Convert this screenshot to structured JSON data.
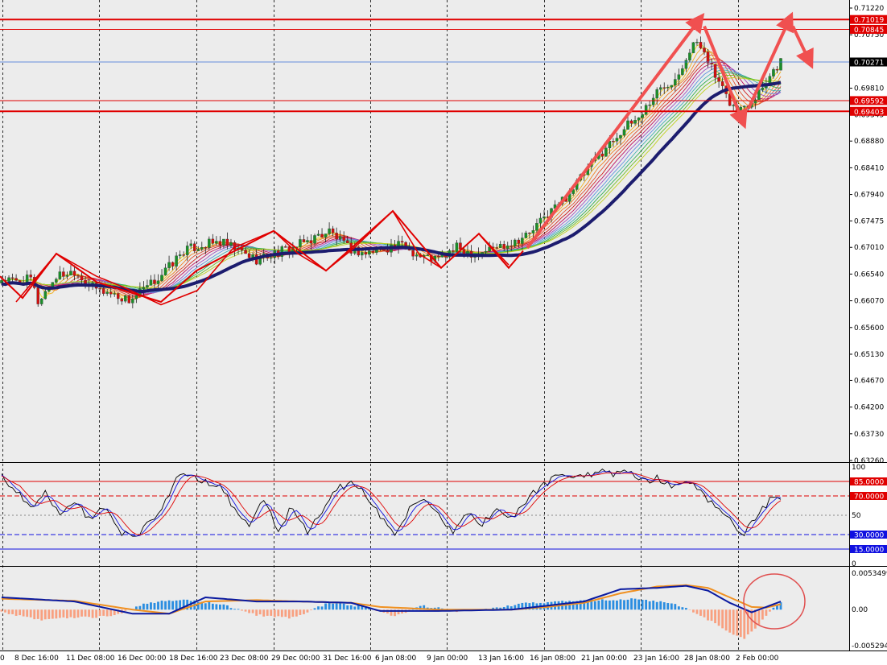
{
  "colors": {
    "background": "#ececec",
    "axis_bg": "#ffffff",
    "bull": "#1a8f2a",
    "bear": "#d01010",
    "wick": "#222222",
    "level_red": "#e00000",
    "current": "#3a6fd8",
    "ma_slow": "#1c1c6e",
    "arrow": "#f05050",
    "rsi_black": "#000000",
    "rsi_blue": "#1010e0",
    "rsi_red": "#e00000",
    "macd_pos": "#2a8de0",
    "macd_neg": "#f8a080",
    "macd_line": "#0a1aa0",
    "signal_line": "#f09020",
    "circle": "#e05050"
  },
  "chart_data": [
    {
      "type": "candlestick",
      "panel": "price",
      "ylim": [
        0.6326,
        0.7122
      ],
      "y_ticks": [
        "0.71220",
        "0.70750",
        "0.70285",
        "0.69810",
        "0.69345",
        "0.68880",
        "0.68410",
        "0.67940",
        "0.67475",
        "0.67010",
        "0.66540",
        "0.66070",
        "0.65600",
        "0.65130",
        "0.64670",
        "0.64200",
        "0.63730",
        "0.63260"
      ],
      "x_labels": [
        "0",
        "8 Dec 16:00",
        "11 Dec 08:00",
        "16 Dec 00:00",
        "18 Dec 16:00",
        "23 Dec 08:00",
        "29 Dec 00:00",
        "31 Dec 16:00",
        "6 Jan 08:00",
        "9 Jan 00:00",
        "13 Jan 16:00",
        "16 Jan 08:00",
        "21 Jan 00:00",
        "23 Jan 16:00",
        "28 Jan 08:00",
        "2 Feb 00:00"
      ],
      "close_path": [
        [
          0,
          0.6645
        ],
        [
          4,
          0.664
        ],
        [
          8,
          0.6645
        ],
        [
          10,
          0.6605
        ],
        [
          15,
          0.665
        ],
        [
          20,
          0.666
        ],
        [
          25,
          0.663
        ],
        [
          30,
          0.662
        ],
        [
          35,
          0.6608
        ],
        [
          40,
          0.663
        ],
        [
          45,
          0.666
        ],
        [
          50,
          0.6695
        ],
        [
          55,
          0.6705
        ],
        [
          60,
          0.671
        ],
        [
          65,
          0.6695
        ],
        [
          70,
          0.668
        ],
        [
          75,
          0.669
        ],
        [
          80,
          0.67
        ],
        [
          85,
          0.6715
        ],
        [
          90,
          0.673
        ],
        [
          95,
          0.67
        ],
        [
          100,
          0.669
        ],
        [
          105,
          0.67
        ],
        [
          110,
          0.6705
        ],
        [
          115,
          0.6685
        ],
        [
          120,
          0.668
        ],
        [
          125,
          0.67
        ],
        [
          130,
          0.669
        ],
        [
          135,
          0.67
        ],
        [
          140,
          0.671
        ],
        [
          145,
          0.6725
        ],
        [
          150,
          0.676
        ],
        [
          155,
          0.679
        ],
        [
          160,
          0.683
        ],
        [
          165,
          0.687
        ],
        [
          170,
          0.6905
        ],
        [
          175,
          0.693
        ],
        [
          180,
          0.6975
        ],
        [
          185,
          0.7
        ],
        [
          190,
          0.706
        ],
        [
          193,
          0.705
        ],
        [
          196,
          0.7
        ],
        [
          199,
          0.6965
        ],
        [
          202,
          0.694
        ],
        [
          206,
          0.696
        ],
        [
          210,
          0.6995
        ],
        [
          214,
          0.703
        ]
      ],
      "levels": [
        {
          "value": 0.71019,
          "label": "0.71019",
          "style": "thick"
        },
        {
          "value": 0.70845,
          "label": "0.70845",
          "style": "thin"
        },
        {
          "value": 0.69592,
          "label": "0.69592",
          "style": "thin"
        },
        {
          "value": 0.69403,
          "label": "0.69403",
          "style": "thick"
        }
      ],
      "current_price": {
        "value": 0.70271,
        "label": "0.70271"
      }
    },
    {
      "type": "line",
      "panel": "rsi",
      "ylim": [
        0,
        100
      ],
      "y_ticks": [
        "100",
        "50",
        "0"
      ],
      "levels": [
        {
          "value": 85,
          "label": "85.0000",
          "color": "red",
          "style": "solid"
        },
        {
          "value": 70,
          "label": "70.0000",
          "color": "red",
          "style": "dash"
        },
        {
          "value": 50,
          "label": "",
          "color": "gray",
          "style": "dot"
        },
        {
          "value": 30,
          "label": "30.0000",
          "color": "blue",
          "style": "dash"
        },
        {
          "value": 15,
          "label": "15.0000",
          "color": "blue",
          "style": "solid"
        }
      ],
      "path": [
        [
          0,
          90
        ],
        [
          4,
          75
        ],
        [
          8,
          55
        ],
        [
          12,
          72
        ],
        [
          16,
          50
        ],
        [
          20,
          65
        ],
        [
          24,
          45
        ],
        [
          28,
          60
        ],
        [
          32,
          35
        ],
        [
          36,
          25
        ],
        [
          40,
          42
        ],
        [
          44,
          55
        ],
        [
          48,
          90
        ],
        [
          52,
          92
        ],
        [
          56,
          85
        ],
        [
          60,
          80
        ],
        [
          64,
          55
        ],
        [
          68,
          40
        ],
        [
          72,
          65
        ],
        [
          76,
          35
        ],
        [
          80,
          60
        ],
        [
          84,
          30
        ],
        [
          88,
          55
        ],
        [
          92,
          78
        ],
        [
          96,
          82
        ],
        [
          100,
          72
        ],
        [
          104,
          50
        ],
        [
          108,
          30
        ],
        [
          112,
          55
        ],
        [
          116,
          65
        ],
        [
          120,
          50
        ],
        [
          124,
          30
        ],
        [
          128,
          55
        ],
        [
          132,
          40
        ],
        [
          136,
          60
        ],
        [
          140,
          45
        ],
        [
          144,
          65
        ],
        [
          148,
          80
        ],
        [
          152,
          88
        ],
        [
          156,
          92
        ],
        [
          160,
          90
        ],
        [
          164,
          95
        ],
        [
          168,
          92
        ],
        [
          172,
          94
        ],
        [
          176,
          86
        ],
        [
          180,
          88
        ],
        [
          184,
          82
        ],
        [
          188,
          86
        ],
        [
          192,
          75
        ],
        [
          196,
          60
        ],
        [
          200,
          45
        ],
        [
          204,
          30
        ],
        [
          208,
          55
        ],
        [
          212,
          68
        ],
        [
          214,
          70
        ]
      ]
    },
    {
      "type": "bar",
      "panel": "macd",
      "ylim": [
        -0.005294,
        0.005349
      ],
      "y_ticks": [
        "0.0053499",
        "0.00",
        "-0.005294"
      ],
      "hist": [
        [
          0,
          -0.0004
        ],
        [
          10,
          -0.0015
        ],
        [
          20,
          -0.0012
        ],
        [
          30,
          -0.001
        ],
        [
          40,
          0.001
        ],
        [
          50,
          0.0015
        ],
        [
          60,
          0.0008
        ],
        [
          70,
          -0.0008
        ],
        [
          80,
          -0.0012
        ],
        [
          90,
          0.001
        ],
        [
          100,
          0.0004
        ],
        [
          108,
          -0.001
        ],
        [
          115,
          0.0006
        ],
        [
          125,
          -0.0002
        ],
        [
          135,
          0.0002
        ],
        [
          145,
          0.001
        ],
        [
          155,
          0.0012
        ],
        [
          165,
          0.0014
        ],
        [
          175,
          0.0016
        ],
        [
          180,
          0.0012
        ],
        [
          185,
          0.0008
        ],
        [
          188,
          0.0002
        ],
        [
          192,
          -0.001
        ],
        [
          196,
          -0.002
        ],
        [
          200,
          -0.0035
        ],
        [
          204,
          -0.0042
        ],
        [
          208,
          -0.0022
        ],
        [
          212,
          0.0004
        ],
        [
          214,
          0.001
        ]
      ],
      "macd": [
        [
          0,
          0.0018
        ],
        [
          20,
          0.0012
        ],
        [
          36,
          -0.0006
        ],
        [
          46,
          -0.0006
        ],
        [
          56,
          0.0018
        ],
        [
          70,
          0.0012
        ],
        [
          82,
          0.0012
        ],
        [
          96,
          0.001
        ],
        [
          104,
          -0.0002
        ],
        [
          120,
          -0.0002
        ],
        [
          140,
          0.0
        ],
        [
          150,
          0.0006
        ],
        [
          160,
          0.0012
        ],
        [
          170,
          0.003
        ],
        [
          180,
          0.0032
        ],
        [
          188,
          0.0035
        ],
        [
          194,
          0.0028
        ],
        [
          200,
          0.001
        ],
        [
          206,
          -0.0004
        ],
        [
          210,
          0.0004
        ],
        [
          214,
          0.0012
        ]
      ],
      "signal": [
        [
          0,
          0.0016
        ],
        [
          20,
          0.0013
        ],
        [
          36,
          0.0
        ],
        [
          46,
          -0.0006
        ],
        [
          56,
          0.0012
        ],
        [
          70,
          0.0014
        ],
        [
          82,
          0.0012
        ],
        [
          96,
          0.001
        ],
        [
          104,
          0.0004
        ],
        [
          120,
          0.0
        ],
        [
          140,
          0.0
        ],
        [
          150,
          0.0004
        ],
        [
          160,
          0.001
        ],
        [
          170,
          0.0024
        ],
        [
          180,
          0.0034
        ],
        [
          188,
          0.0036
        ],
        [
          194,
          0.0032
        ],
        [
          200,
          0.0018
        ],
        [
          206,
          0.0004
        ],
        [
          210,
          0.0003
        ],
        [
          214,
          0.0008
        ]
      ]
    }
  ]
}
